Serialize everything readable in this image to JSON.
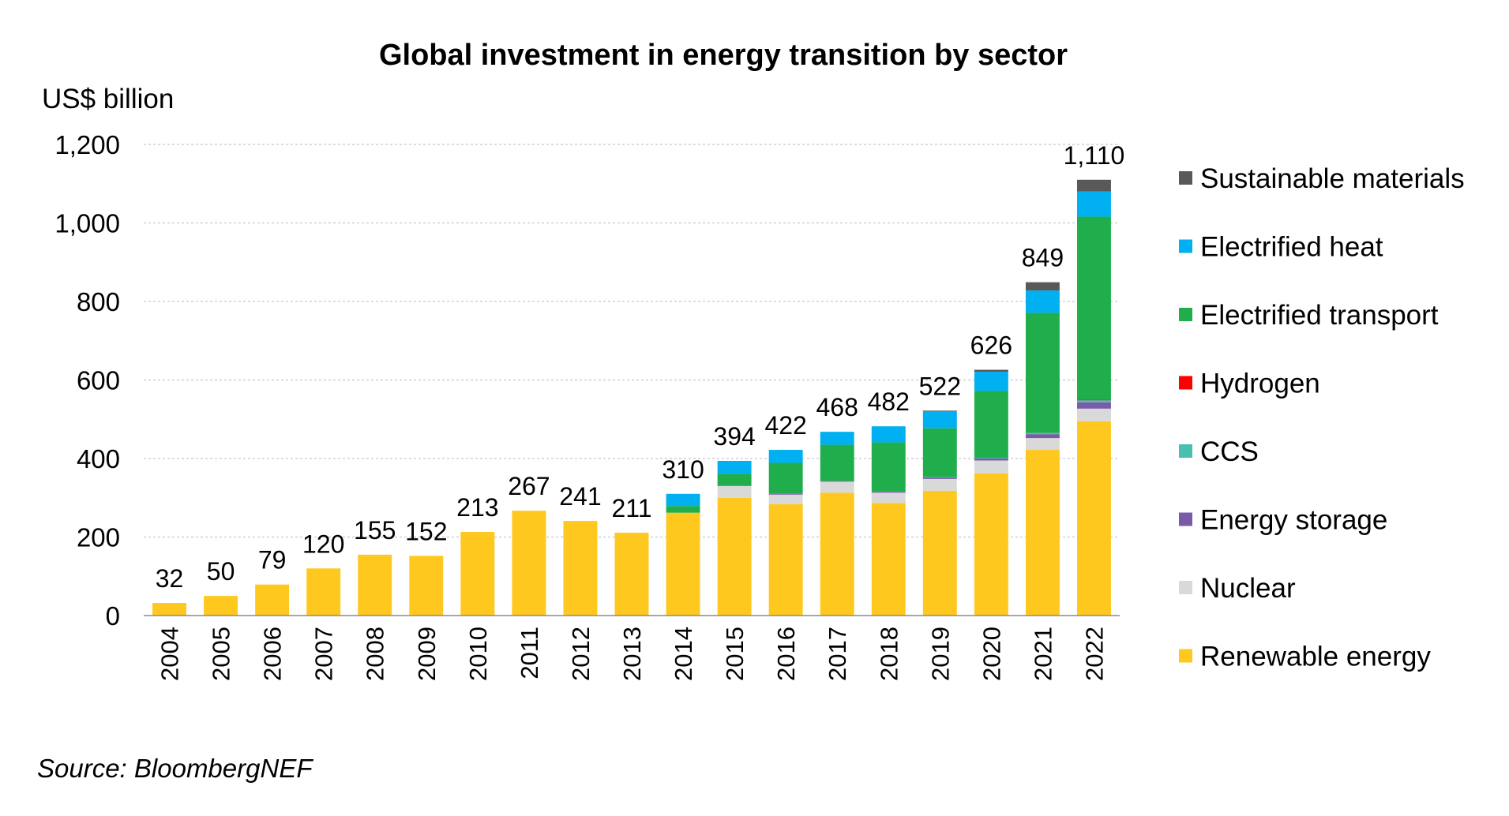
{
  "chart_data": {
    "type": "bar",
    "stacked": true,
    "title": "Global investment in energy transition by sector",
    "ylabel": "US$ billion",
    "xlabel": "",
    "ylim": [
      0,
      1200
    ],
    "yticks": [
      0,
      200,
      400,
      600,
      800,
      1000,
      1200
    ],
    "ytick_labels": [
      "0",
      "200",
      "400",
      "600",
      "800",
      "1,000",
      "1,200"
    ],
    "grid": true,
    "legend_position": "right",
    "categories": [
      "2004",
      "2005",
      "2006",
      "2007",
      "2008",
      "2009",
      "2010",
      "2011",
      "2012",
      "2013",
      "2014",
      "2015",
      "2016",
      "2017",
      "2018",
      "2019",
      "2020",
      "2021",
      "2022"
    ],
    "series": [
      {
        "name": "Renewable energy",
        "color": "#FFC81E",
        "values": [
          32,
          50,
          79,
          120,
          155,
          152,
          213,
          267,
          241,
          211,
          262,
          300,
          284,
          313,
          287,
          318,
          362,
          422,
          495
        ]
      },
      {
        "name": "Nuclear",
        "color": "#D9D9D9",
        "values": [
          0,
          0,
          0,
          0,
          0,
          0,
          0,
          0,
          0,
          0,
          0,
          30,
          24,
          28,
          26,
          30,
          33,
          30,
          32
        ]
      },
      {
        "name": "Energy storage",
        "color": "#7A5BA8",
        "values": [
          0,
          0,
          0,
          0,
          0,
          0,
          0,
          0,
          0,
          0,
          0,
          0,
          2,
          2,
          3,
          4,
          5,
          10,
          16
        ]
      },
      {
        "name": "CCS",
        "color": "#49BFB0",
        "values": [
          0,
          0,
          0,
          0,
          0,
          0,
          0,
          0,
          0,
          0,
          0,
          0,
          0,
          0,
          0,
          1,
          2,
          3,
          6
        ]
      },
      {
        "name": "Hydrogen",
        "color": "#FF0000",
        "values": [
          0,
          0,
          0,
          0,
          0,
          0,
          0,
          0,
          0,
          0,
          0,
          0,
          0,
          0,
          0,
          0,
          0,
          0,
          1
        ]
      },
      {
        "name": "Electrified transport",
        "color": "#1FAE4B",
        "values": [
          0,
          0,
          0,
          0,
          0,
          0,
          0,
          0,
          0,
          0,
          17,
          31,
          79,
          92,
          125,
          124,
          170,
          306,
          466
        ]
      },
      {
        "name": "Electrified heat",
        "color": "#00B0F0",
        "values": [
          0,
          0,
          0,
          0,
          0,
          0,
          0,
          0,
          0,
          0,
          31,
          33,
          33,
          33,
          41,
          43,
          49,
          57,
          64
        ]
      },
      {
        "name": "Sustainable materials",
        "color": "#595959",
        "values": [
          0,
          0,
          0,
          0,
          0,
          0,
          0,
          0,
          0,
          0,
          0,
          0,
          0,
          0,
          0,
          2,
          5,
          21,
          30
        ]
      }
    ],
    "totals": [
      32,
      50,
      79,
      120,
      155,
      152,
      213,
      267,
      241,
      211,
      310,
      394,
      422,
      468,
      482,
      522,
      626,
      849,
      1110
    ],
    "total_labels": [
      "32",
      "50",
      "79",
      "120",
      "155",
      "152",
      "213",
      "267",
      "241",
      "211",
      "310",
      "394",
      "422",
      "468",
      "482",
      "522",
      "626",
      "849",
      "1,110"
    ],
    "legend_order": [
      "Sustainable materials",
      "Electrified heat",
      "Electrified transport",
      "Hydrogen",
      "CCS",
      "Energy storage",
      "Nuclear",
      "Renewable energy"
    ],
    "source": "Source: BloombergNEF"
  }
}
